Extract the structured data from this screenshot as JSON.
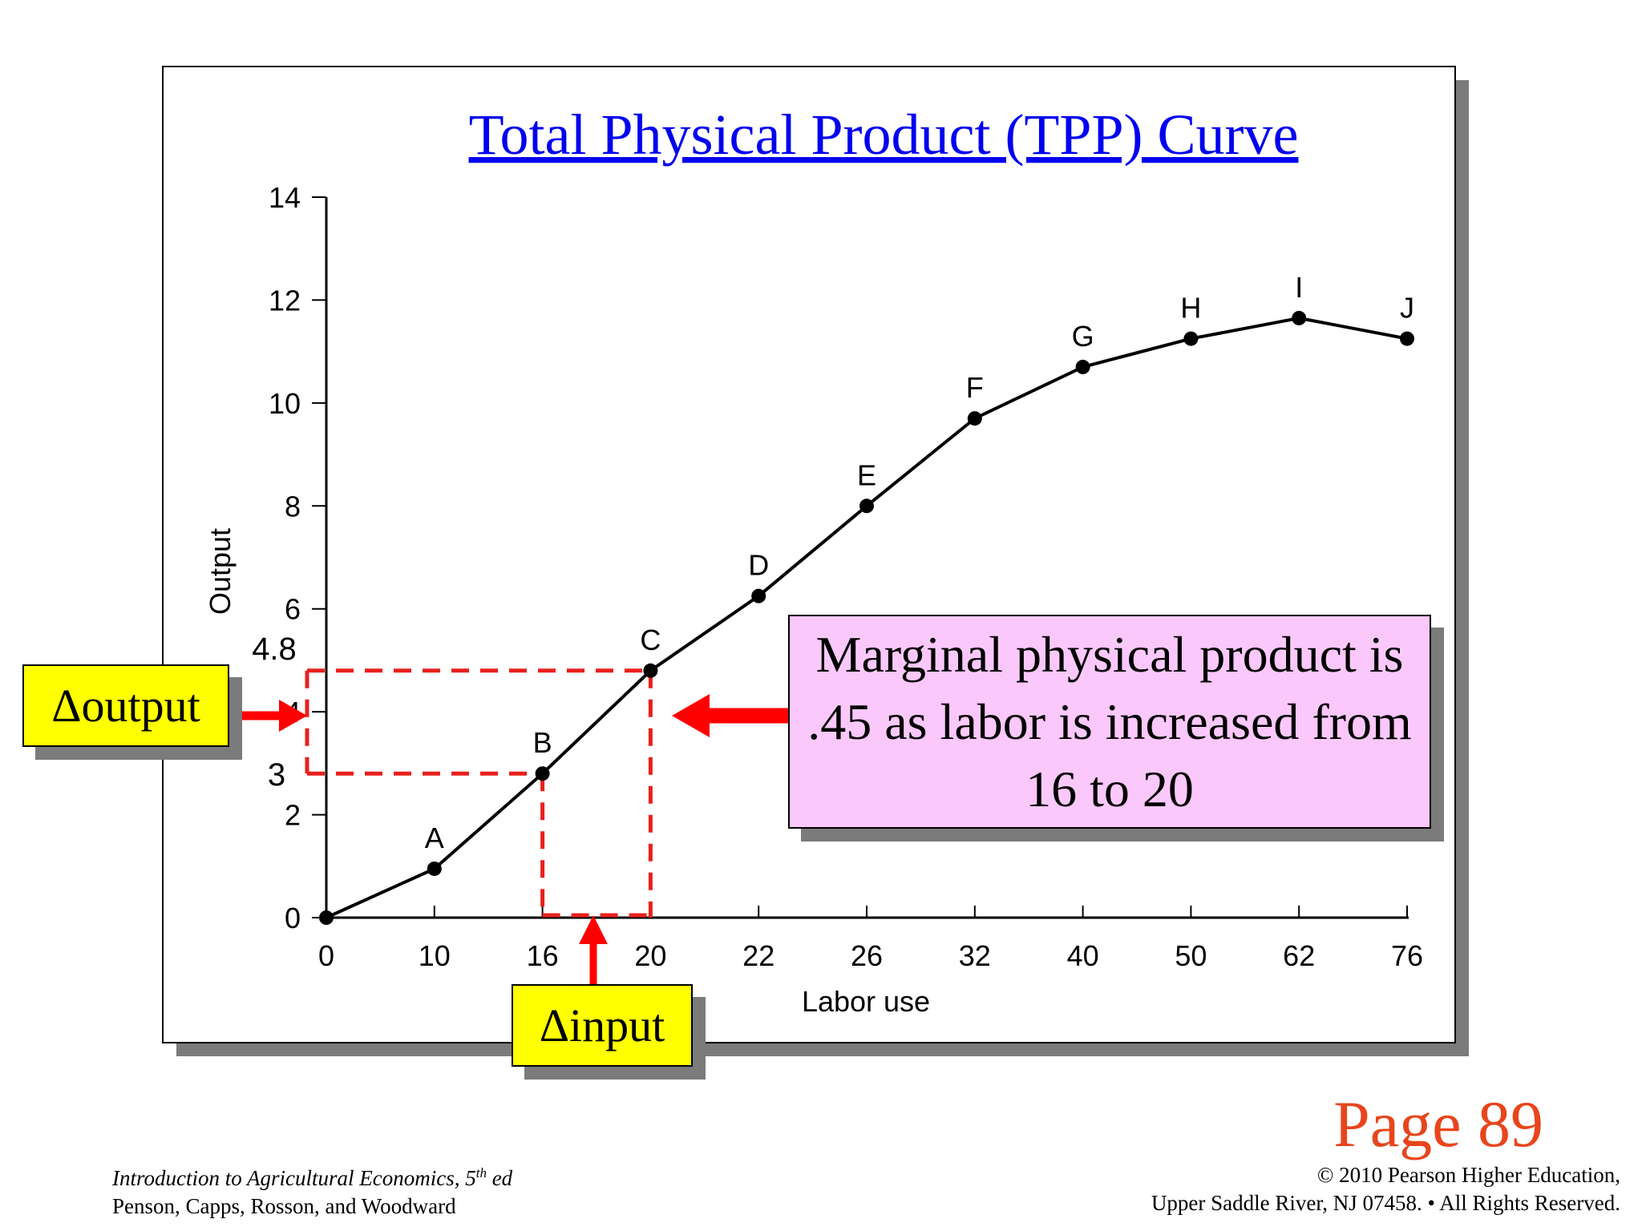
{
  "chart_data": {
    "type": "line",
    "title": "Total Physical Product (TPP) Curve",
    "xlabel": "Labor use",
    "ylabel": "Output",
    "categories": [
      "0",
      "10",
      "16",
      "20",
      "22",
      "26",
      "32",
      "40",
      "50",
      "62",
      "76"
    ],
    "y_ticks": [
      "0",
      "2",
      "4",
      "6",
      "8",
      "10",
      "12",
      "14"
    ],
    "ylim": [
      0,
      14
    ],
    "series": [
      {
        "point_labels": [
          "",
          "A",
          "B",
          "C",
          "D",
          "E",
          "F",
          "G",
          "H",
          "I",
          "J"
        ],
        "values": [
          0,
          0.95,
          2.8,
          4.8,
          6.25,
          8,
          9.7,
          10.7,
          11.25,
          11.65,
          11.25
        ]
      }
    ],
    "marked_levels": {
      "low_label": "3",
      "low_value": 2.8,
      "high_label": "4.8",
      "high_value": 4.8
    },
    "grid": false,
    "legend": "none"
  },
  "annotations": {
    "mpp_text": "Marginal physical product is .45 as labor is increased from 16 to 20",
    "delta_output": "Δoutput",
    "delta_input": "Δinput",
    "page_number": "Page 89"
  },
  "footer": {
    "book_title_main": "Introduction to Agricultural Economics, 5",
    "book_title_sup": "th",
    "book_title_end": " ed",
    "authors": "Penson, Capps, Rosson, and Woodward",
    "copyright_line1": "© 2010 Pearson Higher Education,",
    "copyright_line2": "Upper Saddle River, NJ 07458. • All Rights Reserved."
  },
  "colors": {
    "title": "#0000ee",
    "dashed_lines": "#e8201c",
    "arrows": "#ff0000",
    "callout_pink": "#fbc8fb",
    "callout_yellow": "#ffff00",
    "page_number": "#e8451c"
  }
}
